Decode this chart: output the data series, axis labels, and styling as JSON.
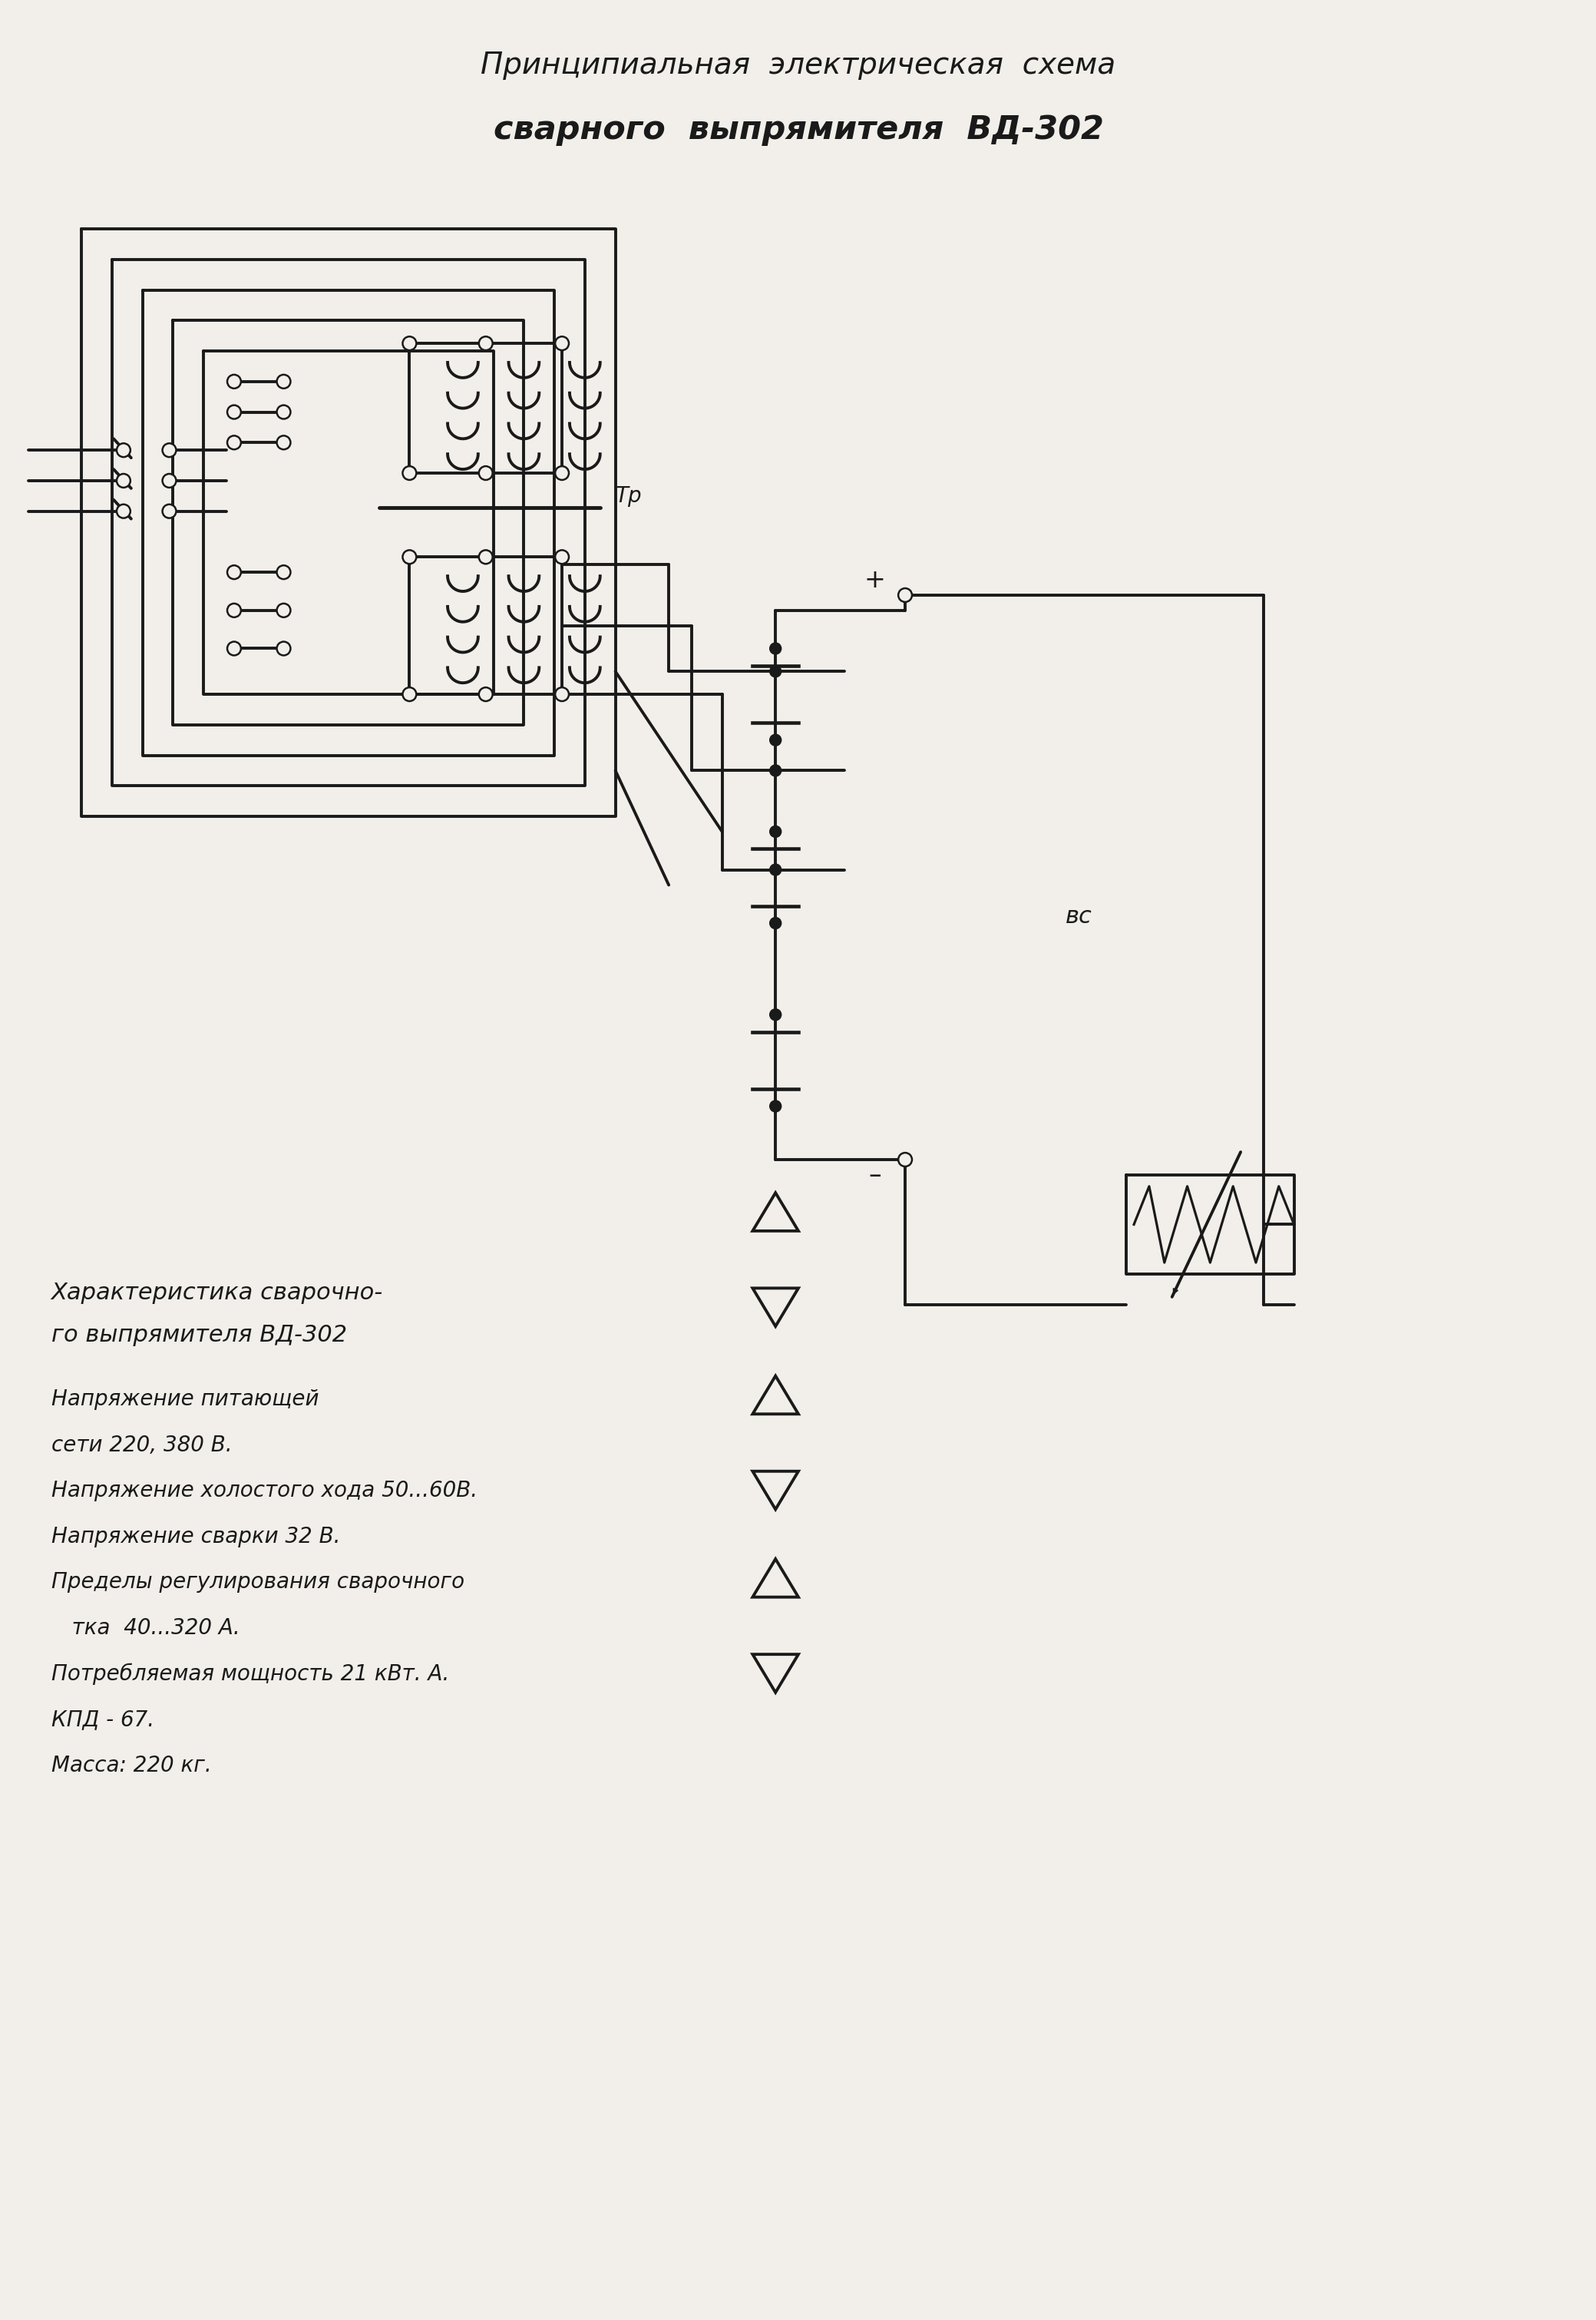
{
  "title_line1": "Принципиальная  электрическая  схема",
  "title_line2": "сварного  выпрямителя  ВД-302",
  "char_title1": "Характеристика сварочно-",
  "char_title2": "го выпрямителя ВД-302",
  "char_lines": [
    "Напряжение питающей",
    "сети 220, 380 В.",
    "Напряжение холостого хода 50...60В.",
    "Напряжение сварки 32 В.",
    "Пределы регулирования сварочного",
    "   тка  40...320 А.",
    "Потребляемая мощность 21 кВт. А.",
    "КПД - 67.",
    "Масса: 220 кг."
  ],
  "bg_color": "#f2efea",
  "line_color": "#1a1a1a",
  "font_size_title": 28,
  "font_size_text": 20
}
